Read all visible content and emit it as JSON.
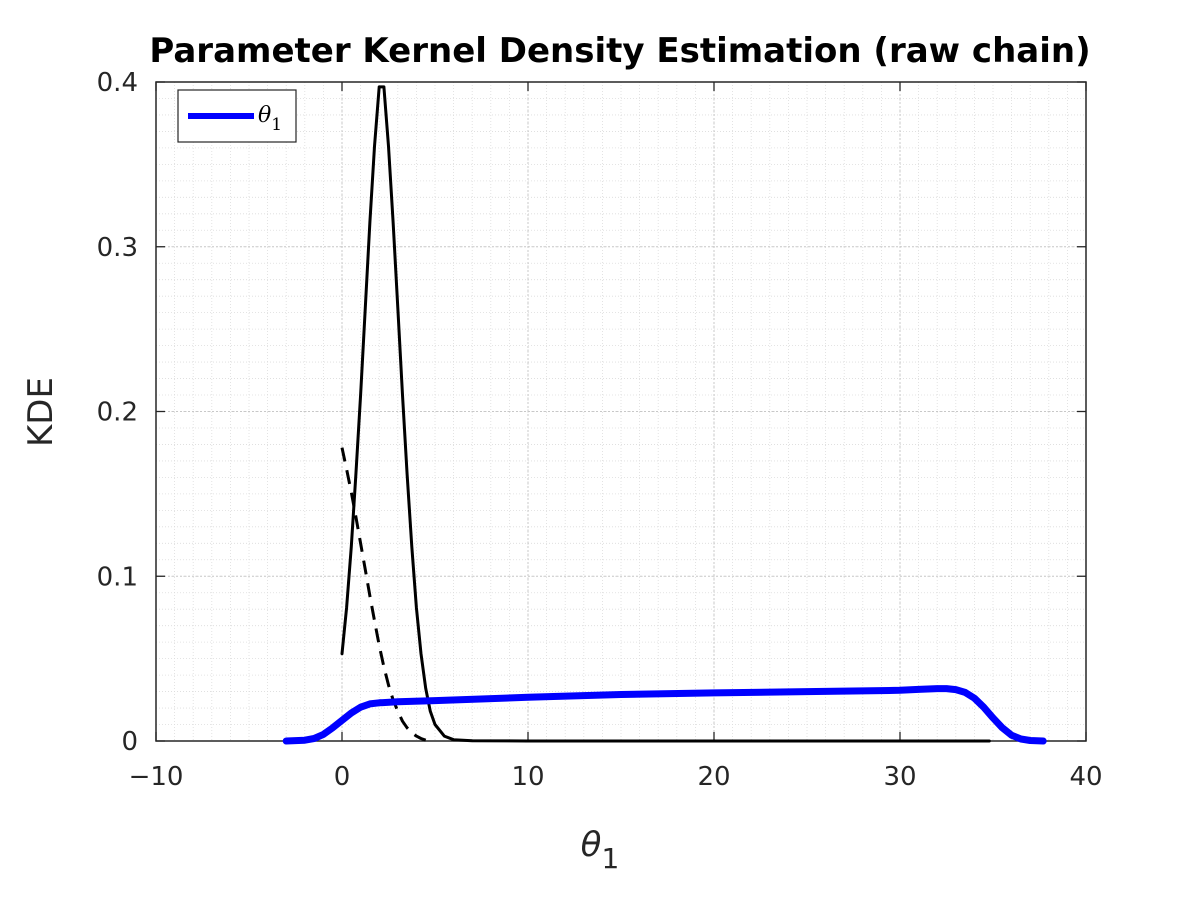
{
  "chart_data": {
    "type": "line",
    "title": "Parameter Kernel Density Estimation (raw chain)",
    "xlabel": "θ",
    "xlabel_sub": "1",
    "ylabel": "KDE",
    "xlim": [
      -10,
      40
    ],
    "ylim": [
      0,
      0.4
    ],
    "xticks": [
      -10,
      0,
      10,
      20,
      30,
      40
    ],
    "xtick_labels": [
      "−10",
      "0",
      "10",
      "20",
      "30",
      "40"
    ],
    "yticks": [
      0,
      0.1,
      0.2,
      0.3,
      0.4
    ],
    "ytick_labels": [
      "0",
      "0.1",
      "0.2",
      "0.3",
      "0.4"
    ],
    "grid": true,
    "minor_grid": true,
    "legend": {
      "position": "top-left",
      "entries": [
        {
          "label": "θ",
          "label_sub": "1",
          "color": "#0000ff"
        }
      ]
    },
    "series": [
      {
        "name": "θ1",
        "color": "#0000ff",
        "style": "solid",
        "x": [
          -3,
          -2,
          -1.5,
          -1,
          -0.5,
          0,
          0.5,
          1,
          1.5,
          2,
          3,
          5,
          10,
          15,
          20,
          25,
          30,
          31,
          32,
          32.5,
          33,
          33.5,
          34,
          34.5,
          35,
          35.5,
          36,
          36.5,
          37,
          37.7
        ],
        "y": [
          0,
          0.0005,
          0.0015,
          0.004,
          0.008,
          0.0125,
          0.017,
          0.0205,
          0.0225,
          0.0232,
          0.0238,
          0.0245,
          0.0265,
          0.0282,
          0.0292,
          0.03,
          0.0308,
          0.0313,
          0.0318,
          0.0318,
          0.0312,
          0.0295,
          0.026,
          0.0205,
          0.014,
          0.008,
          0.0035,
          0.0012,
          0.0003,
          0
        ]
      },
      {
        "color": "#000000",
        "style": "solid",
        "x": [
          0,
          0.25,
          0.5,
          0.75,
          1,
          1.25,
          1.5,
          1.75,
          2,
          2.25,
          2.5,
          2.75,
          3,
          3.25,
          3.5,
          3.75,
          4,
          4.25,
          4.5,
          4.75,
          5,
          5.5,
          6,
          7,
          10,
          20,
          30,
          34.8
        ],
        "y": [
          0.053,
          0.081,
          0.118,
          0.162,
          0.21,
          0.263,
          0.315,
          0.361,
          0.397,
          0.397,
          0.361,
          0.315,
          0.263,
          0.21,
          0.162,
          0.118,
          0.081,
          0.053,
          0.032,
          0.018,
          0.01,
          0.003,
          0.0008,
          0.0001,
          0,
          0,
          0,
          0
        ]
      },
      {
        "color": "#000000",
        "style": "dashed",
        "x": [
          0,
          0.25,
          0.5,
          0.75,
          1,
          1.25,
          1.5,
          1.75,
          2,
          2.25,
          2.5,
          2.75,
          3,
          3.25,
          3.5,
          3.75,
          4,
          4.25,
          4.5
        ],
        "y": [
          0.178,
          0.165,
          0.151,
          0.136,
          0.12,
          0.104,
          0.088,
          0.073,
          0.058,
          0.045,
          0.034,
          0.025,
          0.018,
          0.012,
          0.008,
          0.005,
          0.003,
          0.0015,
          0.0005
        ]
      }
    ]
  }
}
